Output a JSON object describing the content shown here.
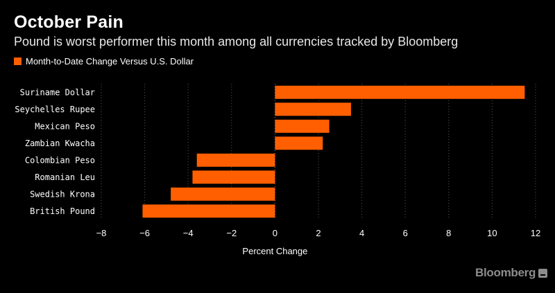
{
  "title": "October Pain",
  "subtitle": "Pound is worst performer this month among all currencies tracked by Bloomberg",
  "legend": {
    "label": "Month-to-Date Change Versus U.S. Dollar",
    "color": "#ff5f00"
  },
  "brand": {
    "name": "Bloomberg"
  },
  "colors": {
    "bar": "#ff5f00",
    "grid": "#5a5a5a",
    "background": "#000000"
  },
  "chart_data": {
    "type": "bar",
    "orientation": "horizontal",
    "categories": [
      "Suriname Dollar",
      "Seychelles Rupee",
      "Mexican Peso",
      "Zambian Kwacha",
      "Colombian Peso",
      "Romanian Leu",
      "Swedish Krona",
      "British Pound"
    ],
    "values": [
      11.5,
      3.5,
      2.5,
      2.2,
      -3.6,
      -3.8,
      -4.8,
      -6.1
    ],
    "xlabel": "Percent Change",
    "xlim": [
      -8,
      12
    ],
    "xticks": [
      -8,
      -6,
      -4,
      -2,
      0,
      2,
      4,
      6,
      8,
      10,
      12
    ],
    "xtick_labels": [
      "−8",
      "−6",
      "−4",
      "−2",
      "0",
      "2",
      "4",
      "6",
      "8",
      "10",
      "12"
    ],
    "grid": "vertical dotted",
    "legend_position": "top-left"
  }
}
